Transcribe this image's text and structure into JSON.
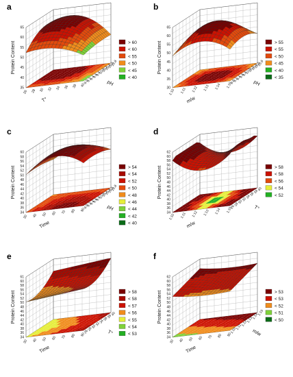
{
  "colors": {
    "dark_red": "#7a0000",
    "red": "#cc1100",
    "orange_red": "#e34a0c",
    "orange": "#f08c1c",
    "yellow": "#e6ee3a",
    "light_green": "#7fd23a",
    "green": "#23b023",
    "dark_green": "#0b6b18",
    "grid": "#888888"
  },
  "chart_data": [
    {
      "id": "a",
      "type": "surface",
      "xlabel": "T°",
      "ylabel": "pH",
      "zlabel": "Protein Content",
      "x_ticks": [
        "26",
        "28",
        "30",
        "32",
        "34",
        "36",
        "38",
        "40"
      ],
      "y_ticks": [
        "9.0",
        "9.2",
        "9.4",
        "9.6",
        "9.8",
        "10.0",
        "10.2",
        "10.4",
        "10.6",
        "10.8"
      ],
      "z_ticks": [
        "35",
        "40",
        "45",
        "50",
        "55",
        "60",
        "65"
      ],
      "zlim": [
        35,
        65
      ],
      "legend": [
        "> 60",
        "< 60",
        "< 55",
        "< 50",
        "< 45",
        "< 40"
      ],
      "legend_colors": [
        "#7a0000",
        "#cc1100",
        "#e34a0c",
        "#f08c1c",
        "#7fd23a",
        "#23b023"
      ]
    },
    {
      "id": "b",
      "type": "surface",
      "xlabel": "m/w",
      "ylabel": "pH",
      "zlabel": "Protein Content",
      "x_ticks": [
        "1:10",
        "1:11",
        "1:12",
        "1:13",
        "1:14",
        "1:15"
      ],
      "y_ticks": [
        "9.0",
        "9.2",
        "9.4",
        "9.6",
        "9.8",
        "10.0",
        "10.2",
        "10.4",
        "10.6",
        "10.8"
      ],
      "z_ticks": [
        "30",
        "35",
        "40",
        "45",
        "50",
        "55",
        "60",
        "65"
      ],
      "zlim": [
        30,
        65
      ],
      "legend": [
        "> 55",
        "< 55",
        "< 50",
        "< 45",
        "< 40",
        "< 35"
      ],
      "legend_colors": [
        "#7a0000",
        "#cc1100",
        "#e34a0c",
        "#f08c1c",
        "#23b023",
        "#0b6b18"
      ]
    },
    {
      "id": "c",
      "type": "surface",
      "xlabel": "Time",
      "ylabel": "pH",
      "zlabel": "Protein Content",
      "x_ticks": [
        "30",
        "40",
        "50",
        "60",
        "70",
        "80",
        "90"
      ],
      "y_ticks": [
        "9.0",
        "9.2",
        "9.4",
        "9.6",
        "9.8",
        "10.0",
        "10.2",
        "10.4",
        "10.6",
        "10.8"
      ],
      "z_ticks": [
        "34",
        "36",
        "38",
        "40",
        "42",
        "44",
        "46",
        "48",
        "50",
        "52",
        "54",
        "56",
        "58",
        "60"
      ],
      "zlim": [
        34,
        60
      ],
      "legend": [
        "> 54",
        "< 54",
        "< 52",
        "< 50",
        "< 48",
        "< 46",
        "< 44",
        "< 42",
        "< 40"
      ],
      "legend_colors": [
        "#7a0000",
        "#a80a00",
        "#cc1100",
        "#e34a0c",
        "#f08c1c",
        "#e6ee3a",
        "#7fd23a",
        "#23b023",
        "#0b6b18"
      ]
    },
    {
      "id": "d",
      "type": "surface",
      "xlabel": "m/w",
      "ylabel": "T°",
      "zlabel": "Protein Content",
      "x_ticks": [
        "1:10",
        "1:11",
        "1:12",
        "1:13",
        "1:14",
        "1:15"
      ],
      "y_ticks": [
        "26",
        "28",
        "30",
        "32",
        "34",
        "36",
        "38",
        "40"
      ],
      "z_ticks": [
        "34",
        "36",
        "38",
        "40",
        "42",
        "44",
        "46",
        "48",
        "50",
        "52",
        "54",
        "56",
        "58",
        "60",
        "62"
      ],
      "zlim": [
        34,
        62
      ],
      "legend": [
        "> 58",
        "< 58",
        "< 56",
        "< 54",
        "< 52"
      ],
      "legend_colors": [
        "#7a0000",
        "#cc1100",
        "#e34a0c",
        "#e6ee3a",
        "#23b023"
      ]
    },
    {
      "id": "e",
      "type": "surface",
      "xlabel": "Time",
      "ylabel": "T°",
      "zlabel": "Protein Content",
      "x_ticks": [
        "30",
        "40",
        "50",
        "60",
        "70",
        "80",
        "90"
      ],
      "y_ticks": [
        "26",
        "28",
        "30",
        "32",
        "34",
        "36",
        "38",
        "40"
      ],
      "z_ticks": [
        "34",
        "36",
        "38",
        "40",
        "42",
        "44",
        "46",
        "48",
        "50",
        "52",
        "54",
        "56",
        "58",
        "60",
        "61"
      ],
      "zlim": [
        34,
        61
      ],
      "legend": [
        "> 58",
        "< 58",
        "< 57",
        "< 56",
        "< 55",
        "< 54",
        "< 53"
      ],
      "legend_colors": [
        "#7a0000",
        "#a80a00",
        "#cc1100",
        "#f08c1c",
        "#e6ee3a",
        "#7fd23a",
        "#23b023"
      ]
    },
    {
      "id": "f",
      "type": "surface",
      "xlabel": "Time",
      "ylabel": "m/w",
      "zlabel": "Protein Content",
      "x_ticks": [
        "30",
        "40",
        "50",
        "60",
        "70",
        "80",
        "90"
      ],
      "y_ticks": [
        "1:10",
        "1:11",
        "1:12",
        "1:13",
        "1:14",
        "1:15"
      ],
      "z_ticks": [
        "34",
        "36",
        "38",
        "40",
        "42",
        "44",
        "46",
        "48",
        "50",
        "52",
        "54",
        "56",
        "58",
        "60",
        "62"
      ],
      "zlim": [
        34,
        62
      ],
      "legend": [
        "> 53",
        "< 53",
        "< 52",
        "< 51",
        "< 50"
      ],
      "legend_colors": [
        "#7a0000",
        "#cc1100",
        "#f08c1c",
        "#7fd23a",
        "#0b6b18"
      ]
    }
  ]
}
